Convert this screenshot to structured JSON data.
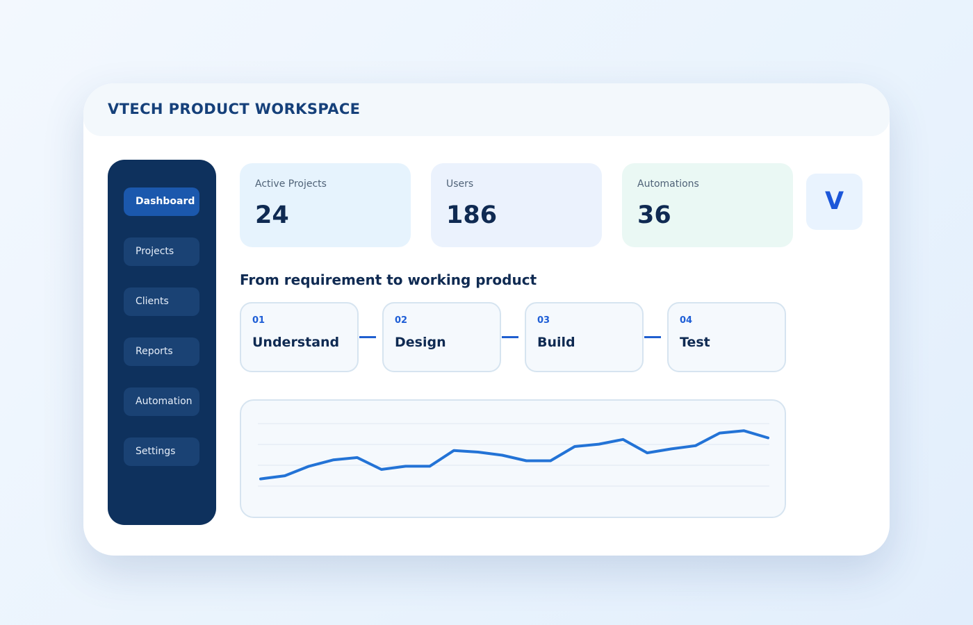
{
  "header": {
    "title": "VTECH PRODUCT WORKSPACE"
  },
  "sidebar": {
    "items": [
      {
        "label": "Dashboard",
        "active": true
      },
      {
        "label": "Projects",
        "active": false
      },
      {
        "label": "Clients",
        "active": false
      },
      {
        "label": "Reports",
        "active": false
      },
      {
        "label": "Automation",
        "active": false
      },
      {
        "label": "Settings",
        "active": false
      }
    ]
  },
  "stats": [
    {
      "label": "Active Projects",
      "value": "24",
      "bg": "#e6f3fd"
    },
    {
      "label": "Users",
      "value": "186",
      "bg": "#ebf2fd"
    },
    {
      "label": "Automations",
      "value": "36",
      "bg": "#eaf8f4"
    }
  ],
  "avatar": {
    "initial": "V"
  },
  "workflow": {
    "title": "From requirement to working product",
    "steps": [
      {
        "num": "01",
        "name": "Understand"
      },
      {
        "num": "02",
        "name": "Design"
      },
      {
        "num": "03",
        "name": "Build"
      },
      {
        "num": "04",
        "name": "Test"
      }
    ]
  },
  "chart_data": {
    "type": "line",
    "grid": true,
    "series": [
      {
        "values": [
          10,
          14,
          26,
          34,
          37,
          22,
          26,
          26,
          46,
          44,
          40,
          33,
          33,
          51,
          54,
          60,
          43,
          48,
          52,
          68,
          71,
          62
        ]
      }
    ],
    "ylim": [
      0,
      100
    ],
    "line_color": "#2373d6"
  },
  "colors": {
    "accent": "#1b58ad",
    "sidebar_bg": "#0e315d",
    "text_dark": "#0f2a52",
    "step_number": "#1e5ed6"
  }
}
